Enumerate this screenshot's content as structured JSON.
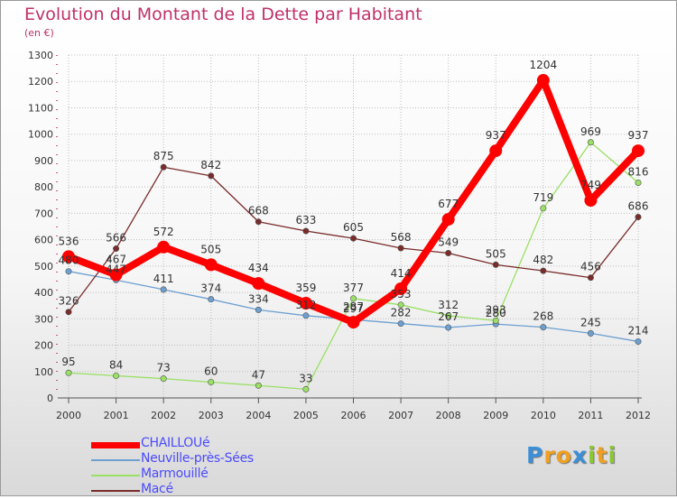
{
  "title": "Evolution du Montant de la Dette par Habitant",
  "subtitle": "(en €)",
  "logo": "Proxiti",
  "chart_data": {
    "type": "line",
    "x": [
      "2000",
      "2001",
      "2002",
      "2003",
      "2004",
      "2005",
      "2006",
      "2007",
      "2008",
      "2009",
      "2010",
      "2011",
      "2012"
    ],
    "ylim": [
      0,
      1300
    ],
    "yticks": [
      0,
      100,
      200,
      300,
      400,
      500,
      600,
      700,
      800,
      900,
      1000,
      1100,
      1200,
      1300
    ],
    "grid": true,
    "legend_position": "bottom-left",
    "series": [
      {
        "name": "CHAILLOUé",
        "color": "#ff0000",
        "values": [
          536,
          467,
          572,
          505,
          434,
          359,
          287,
          414,
          677,
          937,
          1204,
          749,
          937
        ]
      },
      {
        "name": "Neuville-près-Sées",
        "color": "#6d9fd1",
        "values": [
          480,
          447,
          411,
          374,
          334,
          312,
          297,
          282,
          267,
          280,
          268,
          245,
          214
        ]
      },
      {
        "name": "Marmouillé",
        "color": "#99e064",
        "values": [
          95,
          84,
          73,
          60,
          47,
          33,
          377,
          353,
          312,
          293,
          719,
          969,
          816
        ]
      },
      {
        "name": "Macé",
        "color": "#7a2b2b",
        "values": [
          326,
          566,
          875,
          842,
          668,
          633,
          605,
          568,
          549,
          505,
          482,
          456,
          686
        ]
      }
    ]
  }
}
